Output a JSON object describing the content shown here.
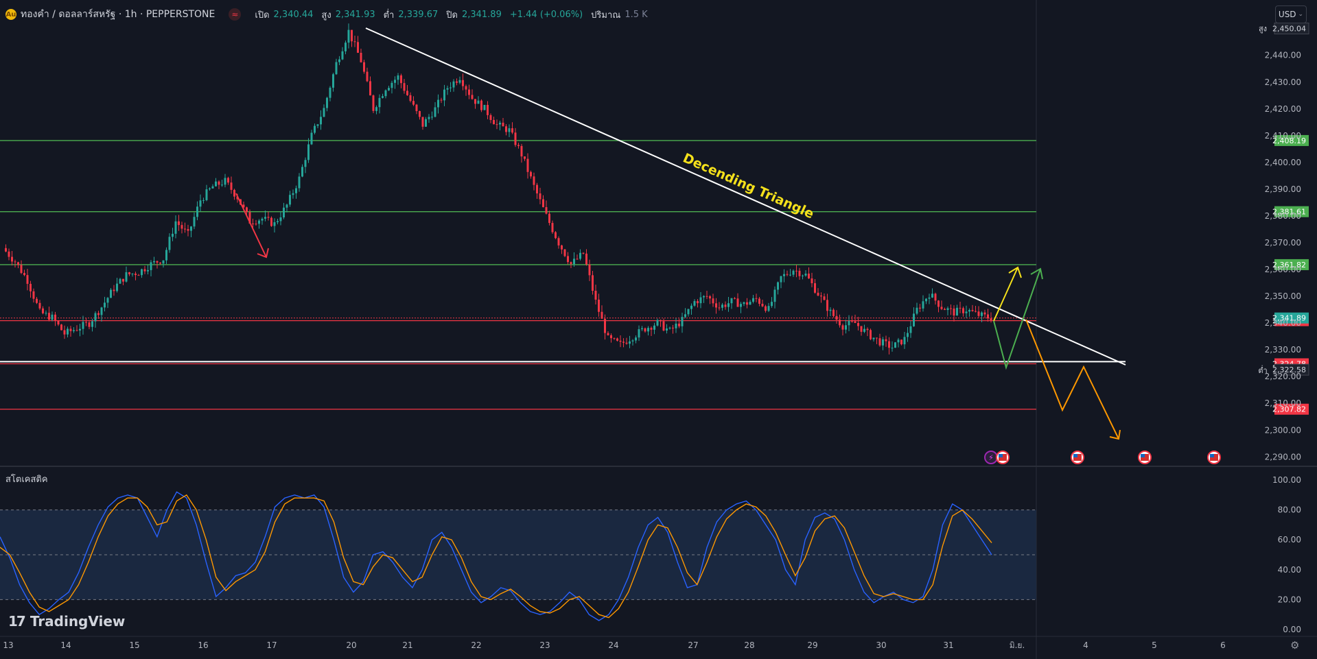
{
  "header": {
    "symbol_title": "ทองคำ / ดอลลาร์สหรัฐ · 1h · PEPPERSTONE",
    "open_label": "เปิด",
    "open_value": "2,340.44",
    "high_label": "สูง",
    "high_value": "2,341.93",
    "low_label": "ต่ำ",
    "low_value": "2,339.67",
    "close_label": "ปิด",
    "close_value": "2,341.89",
    "change_value": "+1.44 (+0.06%)",
    "volume_label": "ปริมาณ",
    "volume_value": "1.5 K"
  },
  "currency_selector": {
    "value": "USD"
  },
  "oscillator": {
    "title": "สโตเคสติค"
  },
  "brand": {
    "logo_text": "TradingView"
  },
  "colors": {
    "background": "#131722",
    "bull_candle": "#26a69a",
    "bear_candle": "#f23645",
    "support_line": "#4caf50",
    "resistance_line": "#f23645",
    "stoch_k": "#2962ff",
    "stoch_d": "#ff9800"
  },
  "icons": {
    "events": [
      "flash-icon",
      "us-flag-icon"
    ],
    "settings": "gear-icon"
  },
  "chart_data": [
    {
      "type": "line",
      "subtype": "candlestick",
      "title": "",
      "x_tick_labels": [
        "13",
        "14",
        "15",
        "16",
        "17",
        "20",
        "21",
        "22",
        "23",
        "24",
        "27",
        "28",
        "29",
        "30",
        "31",
        "มิ.ย.",
        "4",
        "5",
        "6"
      ],
      "y_tick_labels": [
        "2,440.00",
        "2,430.00",
        "2,420.00",
        "2,410.00",
        "2,400.00",
        "2,390.00",
        "2,380.00",
        "2,370.00",
        "2,360.00",
        "2,350.00",
        "2,340.00",
        "2,330.00",
        "2,320.00",
        "2,310.00",
        "2,300.00",
        "2,290.00"
      ],
      "ylim": [
        2287,
        2453
      ],
      "price_close_path": [
        [
          0,
          2368
        ],
        [
          2,
          2363
        ],
        [
          4,
          2356
        ],
        [
          6,
          2344
        ],
        [
          8,
          2342
        ],
        [
          10,
          2336
        ],
        [
          12,
          2338
        ],
        [
          14,
          2340
        ],
        [
          16,
          2346
        ],
        [
          18,
          2353
        ],
        [
          20,
          2358
        ],
        [
          22,
          2359
        ],
        [
          24,
          2362
        ],
        [
          26,
          2364
        ],
        [
          28,
          2378
        ],
        [
          30,
          2373
        ],
        [
          32,
          2386
        ],
        [
          34,
          2391
        ],
        [
          36,
          2393
        ],
        [
          38,
          2387
        ],
        [
          40,
          2378
        ],
        [
          42,
          2379
        ],
        [
          44,
          2377
        ],
        [
          46,
          2384
        ],
        [
          48,
          2394
        ],
        [
          50,
          2410
        ],
        [
          52,
          2420
        ],
        [
          54,
          2437
        ],
        [
          56,
          2449
        ],
        [
          58,
          2438
        ],
        [
          60,
          2420
        ],
        [
          62,
          2428
        ],
        [
          64,
          2432
        ],
        [
          66,
          2423
        ],
        [
          68,
          2414
        ],
        [
          70,
          2420
        ],
        [
          72,
          2428
        ],
        [
          74,
          2432
        ],
        [
          76,
          2424
        ],
        [
          78,
          2420
        ],
        [
          80,
          2414
        ],
        [
          82,
          2412
        ],
        [
          84,
          2403
        ],
        [
          86,
          2391
        ],
        [
          88,
          2380
        ],
        [
          90,
          2370
        ],
        [
          92,
          2362
        ],
        [
          94,
          2366
        ],
        [
          96,
          2348
        ],
        [
          98,
          2334
        ],
        [
          100,
          2332
        ],
        [
          102,
          2335
        ],
        [
          104,
          2338
        ],
        [
          106,
          2340
        ],
        [
          108,
          2337
        ],
        [
          110,
          2341
        ],
        [
          112,
          2348
        ],
        [
          114,
          2350
        ],
        [
          116,
          2346
        ],
        [
          118,
          2348
        ],
        [
          120,
          2347
        ],
        [
          122,
          2349
        ],
        [
          124,
          2345
        ],
        [
          126,
          2357
        ],
        [
          128,
          2360
        ],
        [
          130,
          2358
        ],
        [
          132,
          2351
        ],
        [
          134,
          2344
        ],
        [
          136,
          2339
        ],
        [
          138,
          2340
        ],
        [
          140,
          2336
        ],
        [
          142,
          2333
        ],
        [
          144,
          2331
        ],
        [
          146,
          2334
        ],
        [
          148,
          2345
        ],
        [
          150,
          2351
        ],
        [
          152,
          2346
        ],
        [
          154,
          2344
        ],
        [
          156,
          2345
        ],
        [
          158,
          2343
        ],
        [
          160,
          2341.89
        ]
      ],
      "series_high": {
        "name": "สูง",
        "value": "2,450.04"
      },
      "series_low": {
        "name": "ต่ำ",
        "value": "2,322.58"
      },
      "current_price": "2,341.89",
      "horizontal_levels": [
        {
          "value": 2408.19,
          "label": "2,408.19",
          "color": "#4caf50"
        },
        {
          "value": 2381.61,
          "label": "2,381.61",
          "color": "#4caf50"
        },
        {
          "value": 2361.82,
          "label": "2,361.82",
          "color": "#4caf50"
        },
        {
          "value": 2340.9,
          "label": "2,340.90",
          "color": "#f23645"
        },
        {
          "value": 2324.78,
          "label": "2,324.78",
          "color": "#f23645"
        },
        {
          "value": 2307.82,
          "label": "2,307.82",
          "color": "#f23645"
        }
      ],
      "annotations": [
        {
          "text": "Decending Triangle",
          "type": "trendline-label"
        }
      ],
      "projections": [
        {
          "color": "#f5e11b",
          "direction": "up"
        },
        {
          "color": "#4caf50",
          "direction": "down-up"
        },
        {
          "color": "#ff9800",
          "direction": "down"
        }
      ]
    },
    {
      "type": "line",
      "title": "สโตเคสติค",
      "y_tick_labels": [
        "100.00",
        "80.00",
        "60.00",
        "40.00",
        "20.00",
        "0.00"
      ],
      "ylim": [
        0,
        100
      ],
      "bands": [
        80,
        50,
        20
      ],
      "series": [
        {
          "color": "#2962ff",
          "values": [
            62,
            48,
            30,
            18,
            10,
            14,
            20,
            25,
            38,
            55,
            70,
            82,
            88,
            90,
            88,
            75,
            62,
            80,
            92,
            88,
            70,
            45,
            22,
            28,
            36,
            38,
            45,
            62,
            82,
            88,
            90,
            88,
            90,
            82,
            60,
            35,
            25,
            32,
            50,
            52,
            45,
            35,
            28,
            40,
            60,
            65,
            55,
            40,
            25,
            18,
            22,
            28,
            26,
            18,
            12,
            10,
            12,
            18,
            25,
            20,
            10,
            6,
            10,
            20,
            35,
            55,
            70,
            75,
            65,
            45,
            28,
            30,
            55,
            72,
            80,
            84,
            86,
            80,
            70,
            60,
            40,
            30,
            60,
            75,
            78,
            74,
            60,
            40,
            25,
            18,
            22,
            25,
            20,
            18,
            22,
            40,
            70,
            84,
            80,
            70,
            60,
            50
          ]
        },
        {
          "color": "#ff9800",
          "values": [
            55,
            50,
            38,
            25,
            15,
            12,
            16,
            20,
            30,
            45,
            62,
            76,
            84,
            88,
            88,
            82,
            70,
            72,
            86,
            90,
            80,
            60,
            35,
            26,
            32,
            36,
            40,
            52,
            72,
            84,
            88,
            88,
            88,
            86,
            72,
            48,
            32,
            30,
            42,
            50,
            48,
            40,
            32,
            35,
            50,
            62,
            60,
            48,
            32,
            22,
            20,
            24,
            27,
            22,
            16,
            12,
            11,
            14,
            20,
            22,
            16,
            10,
            8,
            14,
            25,
            42,
            60,
            70,
            68,
            55,
            38,
            30,
            45,
            62,
            74,
            80,
            84,
            82,
            76,
            65,
            50,
            36,
            48,
            66,
            74,
            76,
            68,
            52,
            36,
            24,
            22,
            24,
            22,
            20,
            20,
            30,
            56,
            76,
            80,
            74,
            66,
            58
          ]
        }
      ]
    }
  ]
}
